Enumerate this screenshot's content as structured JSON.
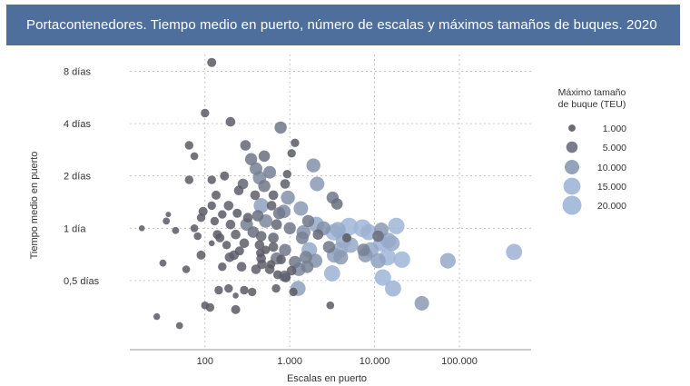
{
  "chart_data": {
    "type": "scatter",
    "title": "Portacontenedores. Tiempo medio en puerto, número de escalas y máximos tamaños de buques. 2020",
    "xlabel": "Escalas en puerto",
    "ylabel": "Tiempo medio en puerto",
    "x_scale": "log",
    "y_scale": "log",
    "xlim": [
      13,
      700000
    ],
    "ylim": [
      0.2,
      10
    ],
    "x_ticks": [
      {
        "v": 100,
        "label": "100"
      },
      {
        "v": 1000,
        "label": "1.000"
      },
      {
        "v": 10000,
        "label": "10.000"
      },
      {
        "v": 100000,
        "label": "100.000"
      }
    ],
    "y_ticks": [
      {
        "v": 8,
        "label": "8 días"
      },
      {
        "v": 4,
        "label": "4 días"
      },
      {
        "v": 2,
        "label": "2 días"
      },
      {
        "v": 1,
        "label": "1 día"
      },
      {
        "v": 0.5,
        "label": "0,5 días"
      }
    ],
    "grid": true,
    "legend": {
      "title_line1": "Máximo tamaño",
      "title_line2": "de buque (TEU)",
      "entries": [
        {
          "label": "1.000",
          "size": 1000
        },
        {
          "label": "5.000",
          "size": 5000
        },
        {
          "label": "10.000",
          "size": 10000
        },
        {
          "label": "15.000",
          "size": 15000
        },
        {
          "label": "20.000",
          "size": 20000
        }
      ],
      "placement": "right"
    },
    "color_small": "#5a5a64",
    "color_large": "#9fb6d8",
    "points": [
      [
        120,
        9.0,
        2500
      ],
      [
        100,
        4.6,
        2000
      ],
      [
        200,
        4.1,
        3000
      ],
      [
        780,
        3.8,
        6000
      ],
      [
        65,
        3.0,
        2000
      ],
      [
        75,
        2.6,
        1500
      ],
      [
        300,
        3.0,
        4000
      ],
      [
        350,
        2.5,
        6000
      ],
      [
        500,
        2.6,
        5000
      ],
      [
        1150,
        3.1,
        2000
      ],
      [
        1050,
        2.7,
        2000
      ],
      [
        400,
        2.2,
        7000
      ],
      [
        580,
        2.1,
        7000
      ],
      [
        1900,
        2.3,
        9000
      ],
      [
        120,
        1.9,
        2000
      ],
      [
        170,
        2.0,
        2500
      ],
      [
        440,
        1.95,
        8000
      ],
      [
        930,
        2.05,
        2000
      ],
      [
        2100,
        1.8,
        10000
      ],
      [
        65,
        1.9,
        2000
      ],
      [
        280,
        1.8,
        4000
      ],
      [
        500,
        1.75,
        6000
      ],
      [
        880,
        1.8,
        3000
      ],
      [
        135,
        1.55,
        2500
      ],
      [
        250,
        1.65,
        3000
      ],
      [
        390,
        1.55,
        3000
      ],
      [
        640,
        1.55,
        3000
      ],
      [
        950,
        1.5,
        9000
      ],
      [
        3200,
        1.5,
        6000
      ],
      [
        120,
        1.35,
        2000
      ],
      [
        190,
        1.35,
        3000
      ],
      [
        460,
        1.35,
        11000
      ],
      [
        610,
        1.35,
        3000
      ],
      [
        1350,
        1.3,
        10000
      ],
      [
        3600,
        1.38,
        5000
      ],
      [
        95,
        1.25,
        2500
      ],
      [
        160,
        1.2,
        2000
      ],
      [
        240,
        1.22,
        2500
      ],
      [
        320,
        1.15,
        3000
      ],
      [
        420,
        1.18,
        5000
      ],
      [
        750,
        1.22,
        6000
      ],
      [
        850,
        1.25,
        8000
      ],
      [
        1650,
        1.1,
        6000
      ],
      [
        2050,
        1.05,
        12000
      ],
      [
        90,
        1.15,
        2000
      ],
      [
        130,
        1.1,
        2000
      ],
      [
        200,
        1.05,
        3000
      ],
      [
        310,
        1.05,
        7000
      ],
      [
        520,
        1.1,
        8000
      ],
      [
        700,
        1.05,
        4000
      ],
      [
        1000,
        1.0,
        6000
      ],
      [
        1450,
        0.95,
        9000
      ],
      [
        2500,
        1.0,
        9000
      ],
      [
        3300,
        0.95,
        14000
      ],
      [
        3700,
        0.98,
        12000
      ],
      [
        5000,
        1.02,
        17000
      ],
      [
        7200,
        1.0,
        17000
      ],
      [
        8500,
        0.95,
        13000
      ],
      [
        12000,
        0.98,
        10000
      ],
      [
        18000,
        1.03,
        14000
      ],
      [
        18,
        1.0,
        500
      ],
      [
        35,
        1.1,
        1000
      ],
      [
        45,
        0.97,
        1000
      ],
      [
        75,
        1.0,
        1500
      ],
      [
        82,
        0.9,
        1500
      ],
      [
        140,
        0.92,
        2500
      ],
      [
        150,
        0.88,
        2500
      ],
      [
        230,
        0.92,
        3000
      ],
      [
        370,
        0.95,
        5000
      ],
      [
        460,
        0.9,
        4000
      ],
      [
        640,
        0.88,
        4000
      ],
      [
        1400,
        0.88,
        7000
      ],
      [
        2150,
        0.92,
        4000
      ],
      [
        4300,
        0.85,
        12000
      ],
      [
        4700,
        0.88,
        2500
      ],
      [
        11000,
        0.9,
        5000
      ],
      [
        14500,
        0.85,
        12000
      ],
      [
        16000,
        0.82,
        12000
      ],
      [
        180,
        0.8,
        2000
      ],
      [
        290,
        0.82,
        3000
      ],
      [
        440,
        0.8,
        3000
      ],
      [
        640,
        0.78,
        3000
      ],
      [
        880,
        0.75,
        6000
      ],
      [
        1700,
        0.75,
        12000
      ],
      [
        2900,
        0.78,
        6000
      ],
      [
        3900,
        0.75,
        12000
      ],
      [
        5200,
        0.8,
        12000
      ],
      [
        7400,
        0.75,
        7000
      ],
      [
        9000,
        0.75,
        12000
      ],
      [
        12000,
        0.82,
        13000
      ],
      [
        255,
        0.74,
        2500
      ],
      [
        450,
        0.72,
        2000
      ],
      [
        520,
        0.75,
        2000
      ],
      [
        460,
        0.67,
        3000
      ],
      [
        600,
        0.62,
        2000
      ],
      [
        90,
        0.7,
        2500
      ],
      [
        195,
        0.68,
        3000
      ],
      [
        220,
        0.7,
        3000
      ],
      [
        700,
        0.67,
        6000
      ],
      [
        790,
        0.66,
        3000
      ],
      [
        1150,
        0.64,
        6000
      ],
      [
        1550,
        0.68,
        7000
      ],
      [
        2000,
        0.65,
        9000
      ],
      [
        3350,
        0.7,
        11000
      ],
      [
        4000,
        0.68,
        10000
      ],
      [
        7800,
        0.7,
        10000
      ],
      [
        11000,
        0.65,
        11000
      ],
      [
        14200,
        0.68,
        14000
      ],
      [
        21000,
        0.66,
        14000
      ],
      [
        73000,
        0.65,
        12000
      ],
      [
        440000,
        0.73,
        13000
      ],
      [
        32,
        0.63,
        1000
      ],
      [
        60,
        0.58,
        1500
      ],
      [
        160,
        0.6,
        2000
      ],
      [
        270,
        0.6,
        3000
      ],
      [
        400,
        0.58,
        3000
      ],
      [
        470,
        0.62,
        3000
      ],
      [
        580,
        0.58,
        3000
      ],
      [
        720,
        0.54,
        2500
      ],
      [
        870,
        0.53,
        5000
      ],
      [
        900,
        0.52,
        3000
      ],
      [
        1050,
        0.57,
        3000
      ],
      [
        1280,
        0.58,
        8000
      ],
      [
        1600,
        0.6,
        7000
      ],
      [
        3150,
        0.55,
        13000
      ],
      [
        12500,
        0.52,
        14000
      ],
      [
        145,
        0.44,
        2000
      ],
      [
        190,
        0.45,
        2000
      ],
      [
        230,
        0.41,
        500
      ],
      [
        290,
        0.44,
        2000
      ],
      [
        360,
        0.43,
        2000
      ],
      [
        690,
        0.45,
        2000
      ],
      [
        1100,
        0.43,
        2000
      ],
      [
        1250,
        0.45,
        11000
      ],
      [
        16500,
        0.45,
        13000
      ],
      [
        100,
        0.36,
        1500
      ],
      [
        115,
        0.35,
        2000
      ],
      [
        230,
        0.34,
        2500
      ],
      [
        3000,
        0.36,
        1500
      ],
      [
        36000,
        0.37,
        10000
      ],
      [
        27,
        0.31,
        800
      ],
      [
        50,
        0.275,
        1000
      ],
      [
        37,
        1.2,
        300
      ],
      [
        120,
        0.82,
        500
      ]
    ]
  }
}
